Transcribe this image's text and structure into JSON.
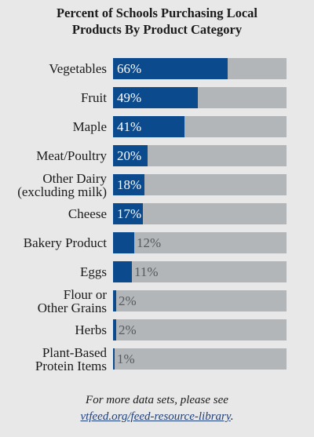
{
  "chart_data": {
    "type": "bar",
    "orientation": "horizontal",
    "title": "Percent of Schools Purchasing Local Products By Product Category",
    "title_lines": [
      "Percent of Schools Purchasing Local",
      "Products By Product Category"
    ],
    "categories": [
      [
        "Vegetables"
      ],
      [
        "Fruit"
      ],
      [
        "Maple"
      ],
      [
        "Meat/Poultry"
      ],
      [
        "Other Dairy",
        "(excluding milk)"
      ],
      [
        "Cheese"
      ],
      [
        "Bakery Product"
      ],
      [
        "Eggs"
      ],
      [
        "Flour or",
        "Other Grains"
      ],
      [
        "Herbs"
      ],
      [
        "Plant-Based",
        "Protein Items"
      ]
    ],
    "values": [
      66,
      49,
      41,
      20,
      18,
      17,
      12,
      11,
      2,
      2,
      1
    ],
    "value_labels": [
      "66%",
      "49%",
      "41%",
      "20%",
      "18%",
      "17%",
      "12%",
      "11%",
      "2%",
      "2%",
      "1%"
    ],
    "xlim": [
      0,
      100
    ],
    "colors": {
      "fill": "#0b4a8c",
      "track": "#b3b6b9",
      "panel": "#e8e8e8"
    }
  },
  "footer": {
    "line1": "For more data sets, please see",
    "link": "vtfeed.org/feed-resource-library",
    "suffix": "."
  }
}
